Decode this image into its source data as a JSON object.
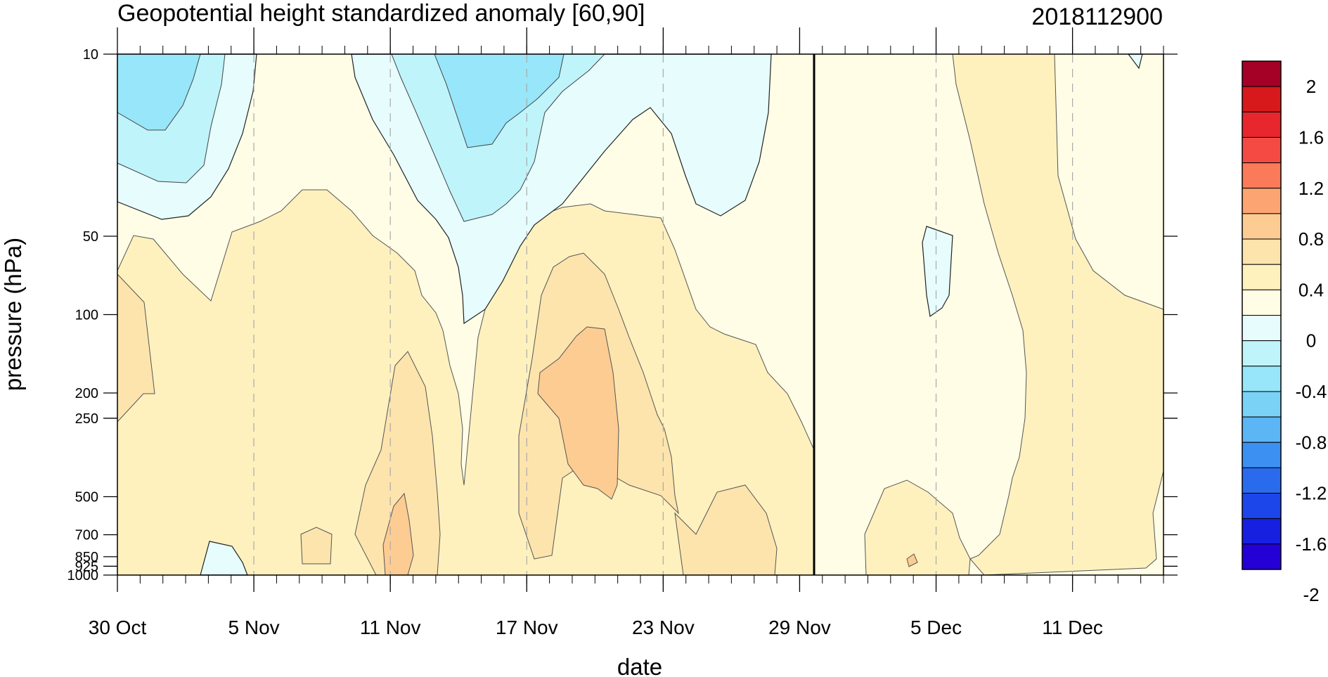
{
  "chart_data": {
    "type": "contour",
    "title": "Geopotential height standardized anomaly [60,90]",
    "right_title": "2018112900",
    "xlabel": "date",
    "ylabel": "pressure (hPa)",
    "y_scale": "log",
    "y_inverted": true,
    "ylim": [
      1000,
      10
    ],
    "y_ticks": [
      {
        "value": 10,
        "label": "10"
      },
      {
        "value": 50,
        "label": "50"
      },
      {
        "value": 100,
        "label": "100"
      },
      {
        "value": 200,
        "label": "200"
      },
      {
        "value": 250,
        "label": "250"
      },
      {
        "value": 500,
        "label": "500"
      },
      {
        "value": 700,
        "label": "700"
      },
      {
        "value": 850,
        "label": "850"
      },
      {
        "value": 925,
        "label": "925"
      },
      {
        "value": 1000,
        "label": "1000"
      }
    ],
    "xlim": [
      "2018-10-30",
      "2018-12-15"
    ],
    "x_ticks": [
      {
        "date": "2018-10-30",
        "label": "30 Oct"
      },
      {
        "date": "2018-11-05",
        "label": "5 Nov"
      },
      {
        "date": "2018-11-11",
        "label": "11 Nov"
      },
      {
        "date": "2018-11-17",
        "label": "17 Nov"
      },
      {
        "date": "2018-11-23",
        "label": "23 Nov"
      },
      {
        "date": "2018-11-29",
        "label": "29 Nov"
      },
      {
        "date": "2018-12-05",
        "label": "5 Dec"
      },
      {
        "date": "2018-12-11",
        "label": "11 Dec"
      }
    ],
    "dashed_gridlines_at": [
      "2018-11-05",
      "2018-11-11",
      "2018-11-17",
      "2018-11-23",
      "2018-12-05",
      "2018-12-11"
    ],
    "analysis_date_line": "2018-11-29",
    "colorbar": {
      "labels": [
        "2",
        "1.6",
        "1.2",
        "0.8",
        "0.4",
        "0",
        "-0.4",
        "-0.8",
        "-1.2",
        "-1.6",
        "-2"
      ],
      "colors": [
        "#a50026",
        "#d7191c",
        "#e8262d",
        "#f44a43",
        "#fa7a5a",
        "#fca572",
        "#fdcc92",
        "#fde4ad",
        "#fff1be",
        "#fffde6",
        "#e6fcfd",
        "#bff4fb",
        "#97e6f9",
        "#7ad2f6",
        "#5cb5f5",
        "#3c90f2",
        "#2a6bee",
        "#1c45ea",
        "#1720e0",
        "#2400d6"
      ]
    }
  }
}
